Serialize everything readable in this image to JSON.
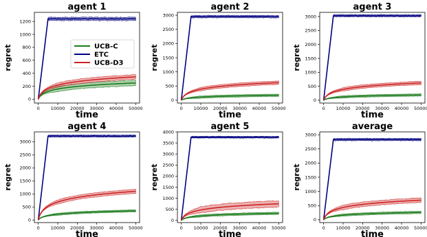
{
  "chart_data": [
    {
      "type": "line",
      "title": "agent 1",
      "xlabel": "time",
      "ylabel": "regret",
      "xlim": [
        -2000,
        52000
      ],
      "ylim": [
        -60,
        1340
      ],
      "xticks": [
        0,
        10000,
        20000,
        30000,
        40000,
        50000
      ],
      "yticks": [
        0,
        200,
        400,
        600,
        800,
        1000,
        1200
      ],
      "legend": {
        "position": "middle-right",
        "entries": [
          "UCB-C",
          "ETC",
          "UCB-D3"
        ]
      },
      "series": [
        {
          "name": "UCB-C",
          "color": "#1a7a1a",
          "final": 250,
          "curve": "log",
          "band": 40
        },
        {
          "name": "ETC",
          "color": "#00007f",
          "final": 1240,
          "switch": 5000,
          "band": 25
        },
        {
          "name": "UCB-D3",
          "color": "#cc2222",
          "final": 345,
          "curve": "log",
          "band": 35
        }
      ]
    },
    {
      "type": "line",
      "title": "agent 2",
      "xlabel": "time",
      "ylabel": "regret",
      "xlim": [
        -2000,
        52000
      ],
      "ylim": [
        -100,
        3100
      ],
      "xticks": [
        0,
        10000,
        20000,
        30000,
        40000,
        50000
      ],
      "yticks": [
        0,
        500,
        1000,
        1500,
        2000,
        2500,
        3000
      ],
      "series": [
        {
          "name": "UCB-C",
          "color": "#1a7a1a",
          "final": 175,
          "curve": "log",
          "band": 40
        },
        {
          "name": "ETC",
          "color": "#00007f",
          "final": 2950,
          "switch": 5000,
          "band": 40
        },
        {
          "name": "UCB-D3",
          "color": "#cc2222",
          "final": 620,
          "curve": "log",
          "band": 60
        }
      ]
    },
    {
      "type": "line",
      "title": "agent 3",
      "xlabel": "time",
      "ylabel": "regret",
      "xlim": [
        -2000,
        52000
      ],
      "ylim": [
        -100,
        3150
      ],
      "xticks": [
        0,
        10000,
        20000,
        30000,
        40000,
        50000
      ],
      "yticks": [
        0,
        500,
        1000,
        1500,
        2000,
        2500,
        3000
      ],
      "series": [
        {
          "name": "UCB-C",
          "color": "#1a7a1a",
          "final": 190,
          "curve": "log",
          "band": 40
        },
        {
          "name": "ETC",
          "color": "#00007f",
          "final": 3030,
          "switch": 5000,
          "band": 40
        },
        {
          "name": "UCB-D3",
          "color": "#cc2222",
          "final": 620,
          "curve": "log",
          "band": 60
        }
      ]
    },
    {
      "type": "line",
      "title": "agent 4",
      "xlabel": "time",
      "ylabel": "regret",
      "xlim": [
        -2000,
        52000
      ],
      "ylim": [
        -100,
        3380
      ],
      "xticks": [
        0,
        10000,
        20000,
        30000,
        40000,
        50000
      ],
      "yticks": [
        0,
        500,
        1000,
        1500,
        2000,
        2500,
        3000
      ],
      "series": [
        {
          "name": "UCB-C",
          "color": "#1a7a1a",
          "final": 350,
          "curve": "log",
          "band": 40
        },
        {
          "name": "ETC",
          "color": "#00007f",
          "final": 3220,
          "switch": 5000,
          "band": 40
        },
        {
          "name": "UCB-D3",
          "color": "#cc2222",
          "final": 1100,
          "curve": "log",
          "band": 80
        }
      ]
    },
    {
      "type": "line",
      "title": "agent 5",
      "xlabel": "time",
      "ylabel": "regret",
      "xlim": [
        -2000,
        52000
      ],
      "ylim": [
        -100,
        4000
      ],
      "xticks": [
        0,
        10000,
        20000,
        30000,
        40000,
        50000
      ],
      "yticks": [
        0,
        500,
        1000,
        1500,
        2000,
        2500,
        3000,
        3500,
        4000
      ],
      "series": [
        {
          "name": "UCB-C",
          "color": "#1a7a1a",
          "final": 320,
          "curve": "log",
          "band": 50
        },
        {
          "name": "ETC",
          "color": "#00007f",
          "final": 3760,
          "switch": 5000,
          "band": 40
        },
        {
          "name": "UCB-D3",
          "color": "#cc2222",
          "final": 750,
          "curve": "log",
          "band": 140
        }
      ]
    },
    {
      "type": "line",
      "title": "average",
      "xlabel": "time",
      "ylabel": "regret",
      "xlim": [
        -2000,
        52000
      ],
      "ylim": [
        -100,
        3100
      ],
      "xticks": [
        0,
        10000,
        20000,
        30000,
        40000,
        50000
      ],
      "yticks": [
        0,
        500,
        1000,
        1500,
        2000,
        2500,
        3000
      ],
      "series": [
        {
          "name": "UCB-C",
          "color": "#1a7a1a",
          "final": 260,
          "curve": "log",
          "band": 40
        },
        {
          "name": "ETC",
          "color": "#00007f",
          "final": 2830,
          "switch": 5000,
          "band": 40
        },
        {
          "name": "UCB-D3",
          "color": "#cc2222",
          "final": 690,
          "curve": "log",
          "band": 80
        }
      ]
    }
  ]
}
